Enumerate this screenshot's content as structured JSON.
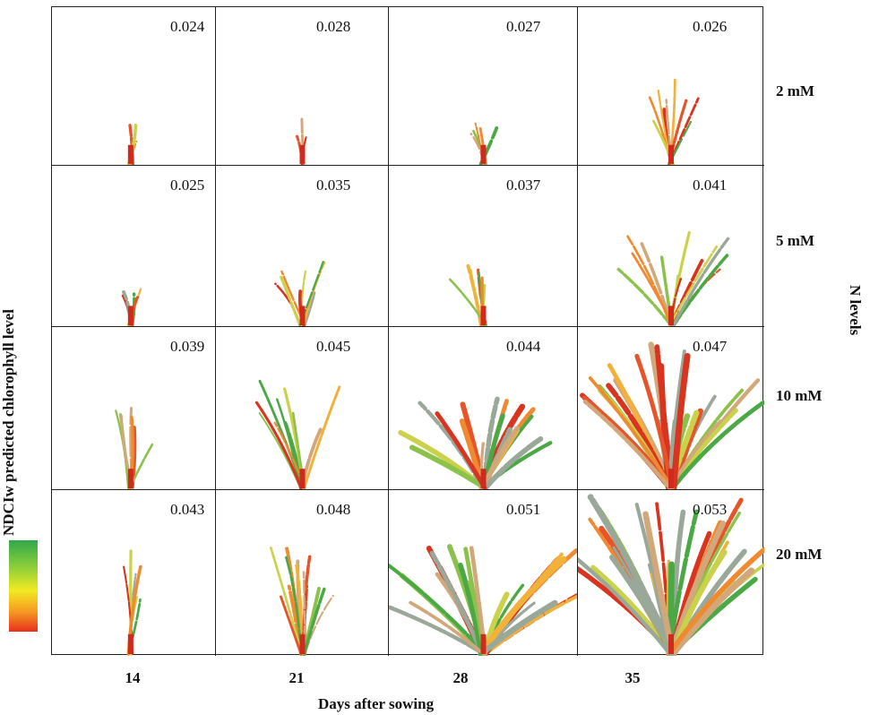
{
  "y_axis_title": "NDCIw predicted chlorophyll level",
  "x_axis_title": "Days after sowing",
  "right_axis_title": "N levels",
  "days": [
    "14",
    "21",
    "28",
    "35"
  ],
  "n_levels": [
    "2 mM",
    "5 mM",
    "10 mM",
    "20 mM"
  ],
  "values": [
    [
      "0.024",
      "0.028",
      "0.027",
      "0.026"
    ],
    [
      "0.025",
      "0.035",
      "0.037",
      "0.041"
    ],
    [
      "0.039",
      "0.045",
      "0.044",
      "0.047"
    ],
    [
      "0.043",
      "0.048",
      "0.051",
      "0.053"
    ]
  ],
  "colorbar": {
    "top_color": "#2fa84a",
    "mid_color": "#f2ea22",
    "bottom_color": "#e8301e"
  }
}
